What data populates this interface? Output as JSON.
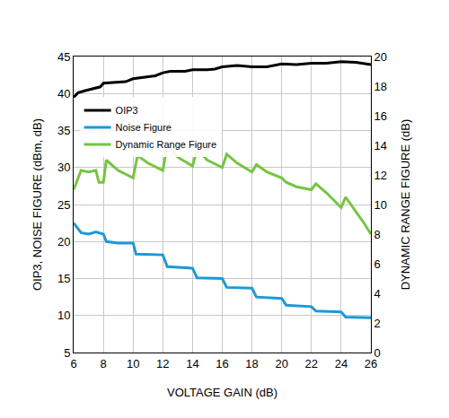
{
  "chart_data": {
    "type": "line",
    "x_label": "VOLTAGE GAIN (dB)",
    "y_label": "OIP3, NOISE FIGURE (dBm, dB)",
    "y2_label": "DYNAMIC RANGE FIGURE (dB)",
    "xlim": [
      6,
      26
    ],
    "xticks": [
      6,
      8,
      10,
      12,
      14,
      16,
      18,
      20,
      22,
      24,
      26
    ],
    "ylim": [
      5,
      45
    ],
    "yticks": [
      5,
      10,
      15,
      20,
      25,
      30,
      35,
      40,
      45
    ],
    "y2lim": [
      0,
      20
    ],
    "y2ticks": [
      0,
      2,
      4,
      6,
      8,
      10,
      12,
      14,
      16,
      18,
      20
    ],
    "grid": true,
    "legend": "top left",
    "series": [
      {
        "name": "OIP3",
        "color": "#000000",
        "axis": "y",
        "x": [
          6,
          6.3,
          6.8,
          7.2,
          7.8,
          8.0,
          8.8,
          9.5,
          10.0,
          10.8,
          11.5,
          12.0,
          12.5,
          13.5,
          14.0,
          15.0,
          15.5,
          16.0,
          17.0,
          18.0,
          19.0,
          20.0,
          21.0,
          22.0,
          23.0,
          24.0,
          25.0,
          26.0
        ],
        "values": [
          39.5,
          40.1,
          40.4,
          40.6,
          40.9,
          41.4,
          41.5,
          41.6,
          42.0,
          42.2,
          42.4,
          42.8,
          43.0,
          43.0,
          43.2,
          43.2,
          43.3,
          43.6,
          43.8,
          43.6,
          43.6,
          44.0,
          43.9,
          44.1,
          44.1,
          44.3,
          44.2,
          43.9
        ]
      },
      {
        "name": "Noise Figure",
        "color": "#1b9ad6",
        "axis": "y",
        "x": [
          6.0,
          6.5,
          7.0,
          7.5,
          8.0,
          8.2,
          9.0,
          10.0,
          10.2,
          12.0,
          12.3,
          13.0,
          14.0,
          14.3,
          16.0,
          16.3,
          18.0,
          18.3,
          20.0,
          20.3,
          22.0,
          22.3,
          24.0,
          24.3,
          26.0
        ],
        "values": [
          22.5,
          21.2,
          21.0,
          21.3,
          21.0,
          20.0,
          19.8,
          19.8,
          18.3,
          18.2,
          16.6,
          16.5,
          16.4,
          15.1,
          15.0,
          13.8,
          13.7,
          12.5,
          12.3,
          11.4,
          11.2,
          10.6,
          10.5,
          9.8,
          9.7
        ]
      },
      {
        "name": "Dynamic Range Figure",
        "color": "#76c442",
        "axis": "y2",
        "x": [
          6.0,
          6.5,
          7.0,
          7.5,
          7.7,
          8.0,
          8.2,
          9.0,
          10.0,
          10.3,
          11.0,
          12.0,
          12.3,
          13.0,
          14.0,
          14.3,
          15.0,
          16.0,
          16.3,
          17.0,
          18.0,
          18.3,
          19.0,
          20.0,
          20.3,
          21.0,
          22.0,
          22.3,
          23.0,
          24.0,
          24.3,
          25.0,
          25.5,
          26.0
        ],
        "values": [
          11.0,
          12.3,
          12.2,
          12.3,
          11.5,
          11.5,
          13.0,
          12.3,
          11.8,
          13.3,
          12.8,
          12.3,
          14.0,
          13.2,
          12.6,
          13.7,
          13.0,
          12.5,
          13.4,
          12.8,
          12.2,
          12.7,
          12.2,
          11.8,
          11.5,
          11.2,
          11.0,
          11.4,
          10.8,
          9.8,
          10.5,
          9.5,
          8.8,
          8.0
        ]
      }
    ]
  }
}
